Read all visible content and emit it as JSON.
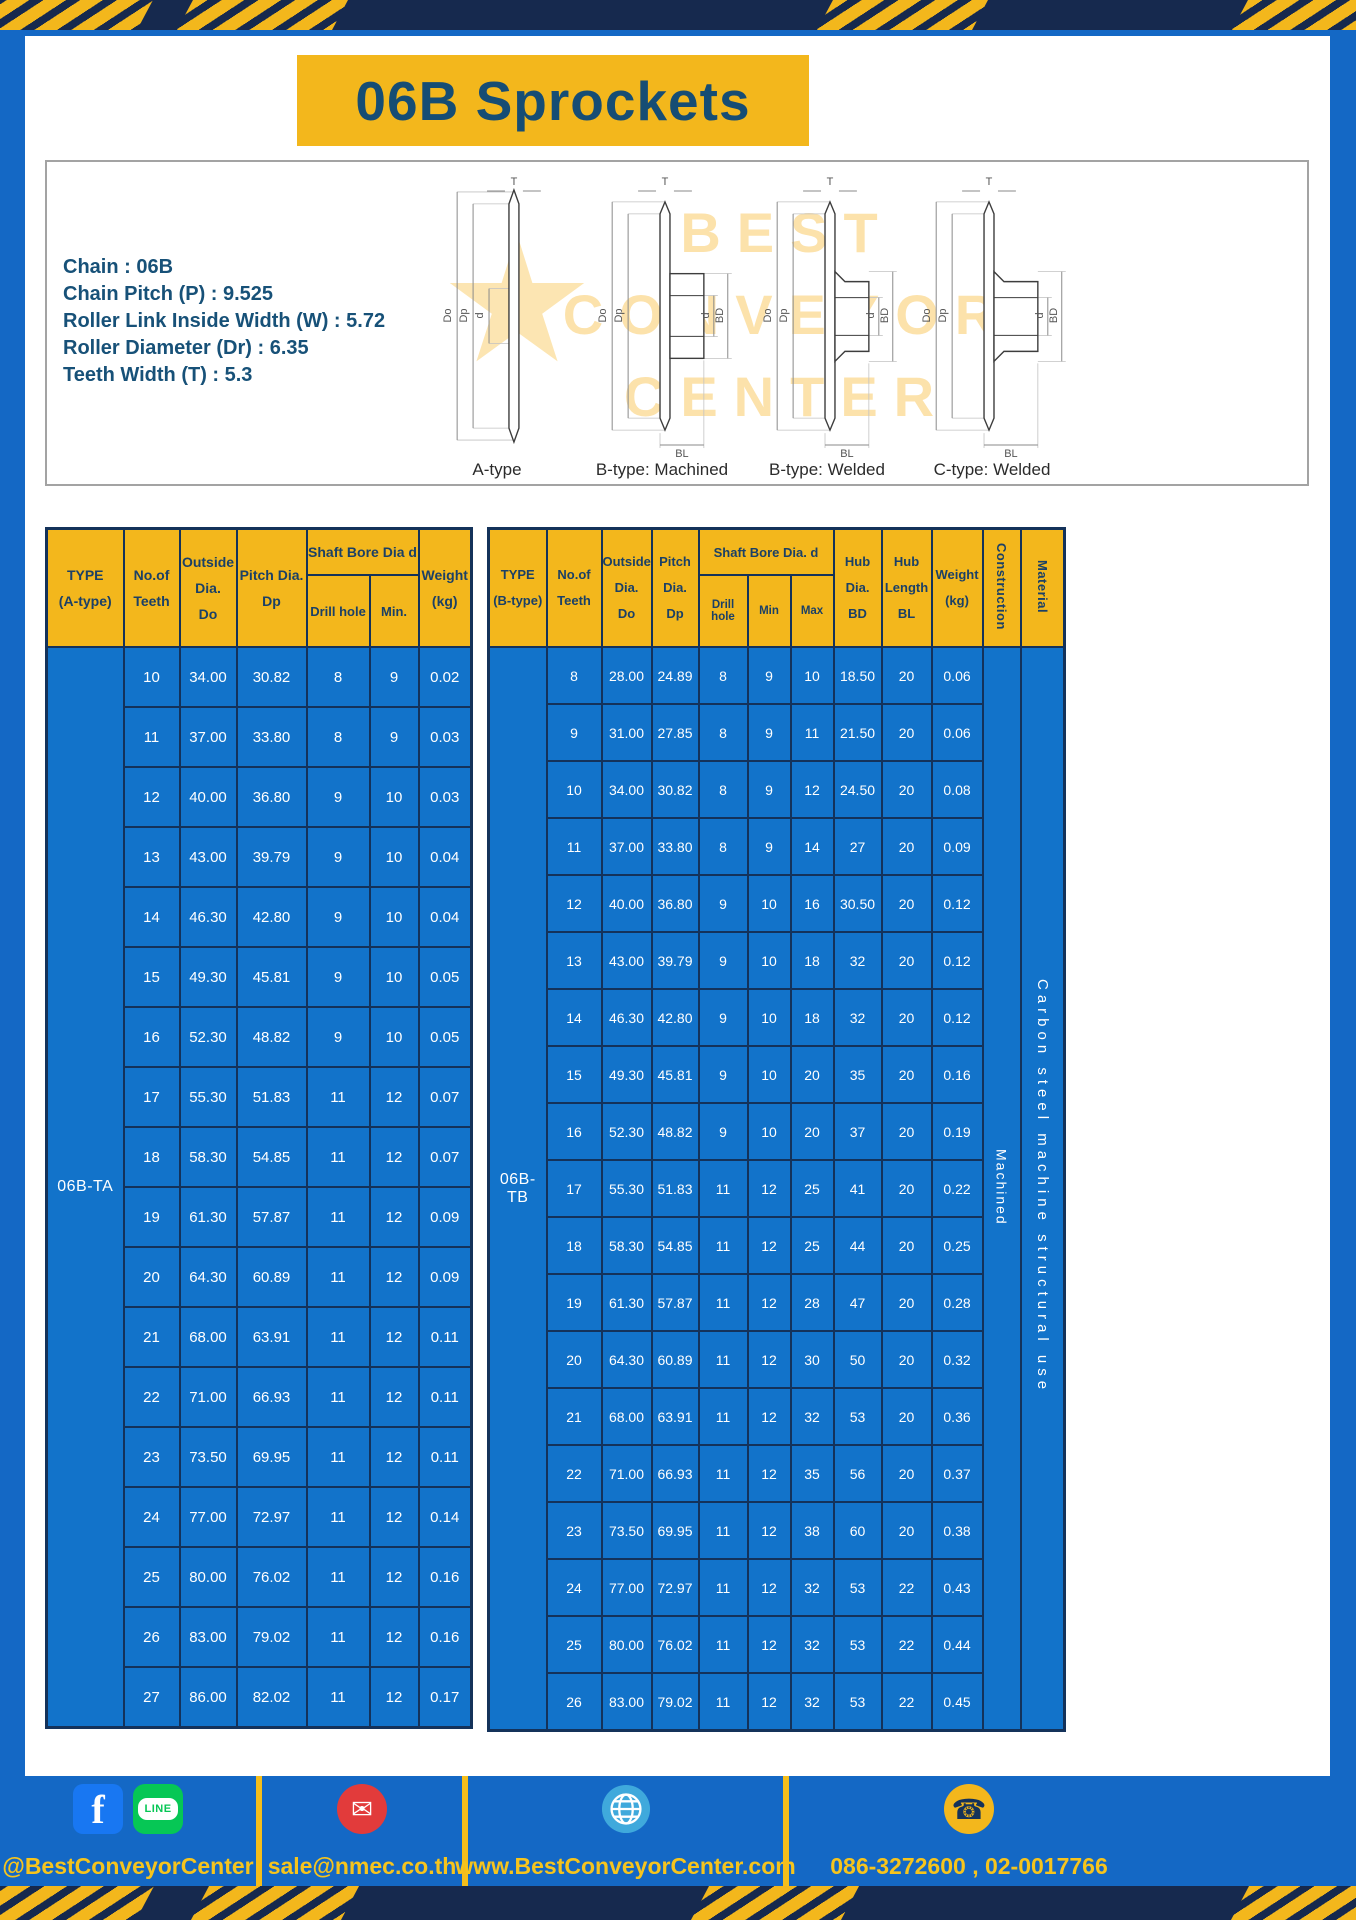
{
  "title": "06B Sprockets",
  "colors": {
    "accent_yellow": "#F3B71C",
    "page_blue": "#1468C5",
    "table_blue": "#1273CA",
    "navy": "#16294E",
    "header_text": "#1B4066",
    "title_text": "#164D74"
  },
  "specs": [
    "Chain : 06B",
    "Chain Pitch (P) : 9.525",
    "Roller Link Inside Width (W) : 5.72",
    "Roller Diameter (Dr) : 6.35",
    "Teeth Width (T) : 5.3"
  ],
  "watermark": {
    "words": [
      "BEST",
      "CONVEYOR",
      "CENTER"
    ]
  },
  "drawings": {
    "labels": [
      "A-type",
      "B-type: Machined",
      "B-type: Welded",
      "C-type: Welded"
    ],
    "dims": {
      "t": "T",
      "do": "Do",
      "dp": "Dp",
      "d": "d",
      "bd": "BD",
      "bl": "BL"
    }
  },
  "tableA": {
    "type_label": "06B-TA",
    "header": {
      "type": "TYPE\n(A-type)",
      "teeth": "No.of\nTeeth",
      "outside": "Outside\nDia.\nDo",
      "pitch": "Pitch Dia.\nDp",
      "shaft_bore": "Shaft Bore Dia d",
      "drill_hole": "Drill hole",
      "min": "Min.",
      "weight": "Weight\n(kg)"
    },
    "rows": [
      [
        "10",
        "34.00",
        "30.82",
        "8",
        "9",
        "0.02"
      ],
      [
        "11",
        "37.00",
        "33.80",
        "8",
        "9",
        "0.03"
      ],
      [
        "12",
        "40.00",
        "36.80",
        "9",
        "10",
        "0.03"
      ],
      [
        "13",
        "43.00",
        "39.79",
        "9",
        "10",
        "0.04"
      ],
      [
        "14",
        "46.30",
        "42.80",
        "9",
        "10",
        "0.04"
      ],
      [
        "15",
        "49.30",
        "45.81",
        "9",
        "10",
        "0.05"
      ],
      [
        "16",
        "52.30",
        "48.82",
        "9",
        "10",
        "0.05"
      ],
      [
        "17",
        "55.30",
        "51.83",
        "11",
        "12",
        "0.07"
      ],
      [
        "18",
        "58.30",
        "54.85",
        "11",
        "12",
        "0.07"
      ],
      [
        "19",
        "61.30",
        "57.87",
        "11",
        "12",
        "0.09"
      ],
      [
        "20",
        "64.30",
        "60.89",
        "11",
        "12",
        "0.09"
      ],
      [
        "21",
        "68.00",
        "63.91",
        "11",
        "12",
        "0.11"
      ],
      [
        "22",
        "71.00",
        "66.93",
        "11",
        "12",
        "0.11"
      ],
      [
        "23",
        "73.50",
        "69.95",
        "11",
        "12",
        "0.11"
      ],
      [
        "24",
        "77.00",
        "72.97",
        "11",
        "12",
        "0.14"
      ],
      [
        "25",
        "80.00",
        "76.02",
        "11",
        "12",
        "0.16"
      ],
      [
        "26",
        "83.00",
        "79.02",
        "11",
        "12",
        "0.16"
      ],
      [
        "27",
        "86.00",
        "82.02",
        "11",
        "12",
        "0.17"
      ]
    ]
  },
  "tableB": {
    "type_label": "06B-TB",
    "construction": "Machined",
    "material": "Carbon steel machine structural use",
    "header": {
      "type": "TYPE\n(B-type)",
      "teeth": "No.of\nTeeth",
      "outside": "Outside\nDia.\nDo",
      "pitch": "Pitch\nDia.\nDp",
      "shaft_bore": "Shaft Bore Dia. d",
      "drill_hole": "Drill hole",
      "min": "Min",
      "max": "Max",
      "hub_dia": "Hub\nDia.\nBD",
      "hub_length": "Hub\nLength\nBL",
      "weight": "Weight\n(kg)",
      "construction_label": "Construction",
      "material_label": "Material"
    },
    "rows": [
      [
        "8",
        "28.00",
        "24.89",
        "8",
        "9",
        "10",
        "18.50",
        "20",
        "0.06"
      ],
      [
        "9",
        "31.00",
        "27.85",
        "8",
        "9",
        "11",
        "21.50",
        "20",
        "0.06"
      ],
      [
        "10",
        "34.00",
        "30.82",
        "8",
        "9",
        "12",
        "24.50",
        "20",
        "0.08"
      ],
      [
        "11",
        "37.00",
        "33.80",
        "8",
        "9",
        "14",
        "27",
        "20",
        "0.09"
      ],
      [
        "12",
        "40.00",
        "36.80",
        "9",
        "10",
        "16",
        "30.50",
        "20",
        "0.12"
      ],
      [
        "13",
        "43.00",
        "39.79",
        "9",
        "10",
        "18",
        "32",
        "20",
        "0.12"
      ],
      [
        "14",
        "46.30",
        "42.80",
        "9",
        "10",
        "18",
        "32",
        "20",
        "0.12"
      ],
      [
        "15",
        "49.30",
        "45.81",
        "9",
        "10",
        "20",
        "35",
        "20",
        "0.16"
      ],
      [
        "16",
        "52.30",
        "48.82",
        "9",
        "10",
        "20",
        "37",
        "20",
        "0.19"
      ],
      [
        "17",
        "55.30",
        "51.83",
        "11",
        "12",
        "25",
        "41",
        "20",
        "0.22"
      ],
      [
        "18",
        "58.30",
        "54.85",
        "11",
        "12",
        "25",
        "44",
        "20",
        "0.25"
      ],
      [
        "19",
        "61.30",
        "57.87",
        "11",
        "12",
        "28",
        "47",
        "20",
        "0.28"
      ],
      [
        "20",
        "64.30",
        "60.89",
        "11",
        "12",
        "30",
        "50",
        "20",
        "0.32"
      ],
      [
        "21",
        "68.00",
        "63.91",
        "11",
        "12",
        "32",
        "53",
        "20",
        "0.36"
      ],
      [
        "22",
        "71.00",
        "66.93",
        "11",
        "12",
        "35",
        "56",
        "20",
        "0.37"
      ],
      [
        "23",
        "73.50",
        "69.95",
        "11",
        "12",
        "38",
        "60",
        "20",
        "0.38"
      ],
      [
        "24",
        "77.00",
        "72.97",
        "11",
        "12",
        "32",
        "53",
        "22",
        "0.43"
      ],
      [
        "25",
        "80.00",
        "76.02",
        "11",
        "12",
        "32",
        "53",
        "22",
        "0.44"
      ],
      [
        "26",
        "83.00",
        "79.02",
        "11",
        "12",
        "32",
        "53",
        "22",
        "0.45"
      ]
    ]
  },
  "footer": {
    "facebook_f": "f",
    "line_label": "LINE",
    "mail_glyph": "✉",
    "phone_glyph": "☎",
    "social_text": "@BestConveyorCenter",
    "email": "sale@nmec.co.th",
    "website": "www.BestConveyorCenter.com",
    "phones": "086-3272600 , 02-0017766"
  }
}
